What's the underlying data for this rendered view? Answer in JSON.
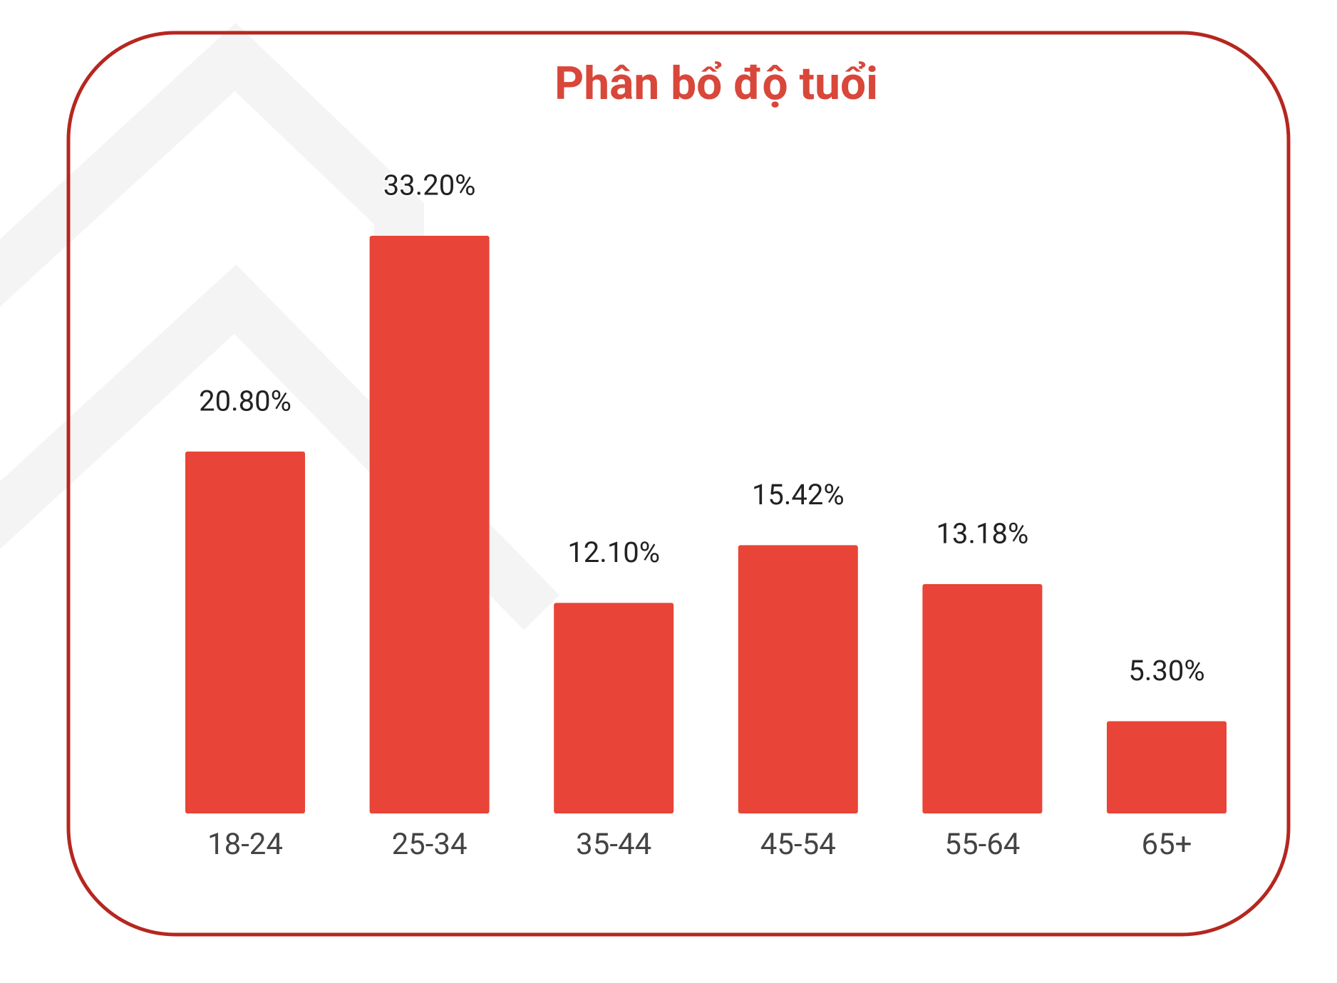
{
  "chart_data": {
    "type": "bar",
    "title": "Phân bổ độ tuổi",
    "categories": [
      "18-24",
      "25-34",
      "35-44",
      "45-54",
      "55-64",
      "65+"
    ],
    "values": [
      20.8,
      33.2,
      12.1,
      15.42,
      13.18,
      5.3
    ],
    "value_labels": [
      "20.80%",
      "33.20%",
      "12.10%",
      "15.42%",
      "13.18%",
      "5.30%"
    ],
    "color": "#e84437"
  }
}
